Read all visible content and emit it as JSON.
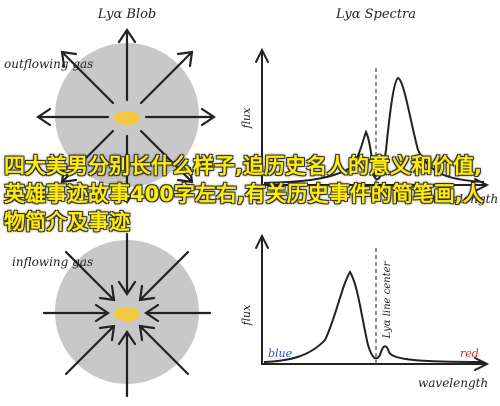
{
  "top_left": {
    "title": "Lyα Blob",
    "gas_label": "outflowing gas"
  },
  "top_right": {
    "title": "Lyα Spectra",
    "ylabel": "flux",
    "xlabel": "wavelength"
  },
  "bottom_left": {
    "gas_label": "inflowing gas"
  },
  "bottom_right": {
    "ylabel": "flux",
    "xlabel": "wavelength",
    "line_center_label": "Lyα line center",
    "blue_label": "blue",
    "red_label": "red"
  },
  "overlay_text": "四大美男分别长什么样子,追历史名人的意义和价值,英雄事迹故事400字左右,有关历史事件的简笔画,人物简介及事迹",
  "colors": {
    "blob": "#c8c8c8",
    "core": "#f5c842",
    "blue": "#2a4fd6",
    "red": "#d62a2a",
    "overlay": "#ffee00"
  }
}
